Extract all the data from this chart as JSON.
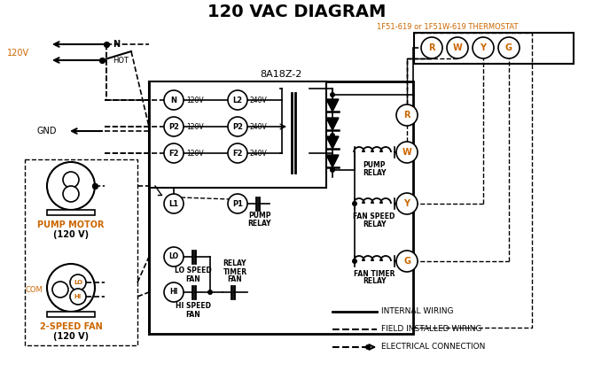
{
  "title": "120 VAC DIAGRAM",
  "bg_color": "#ffffff",
  "line_color": "#000000",
  "orange_color": "#cc6600",
  "thermostat_label": "1F51-619 or 1F51W-619 THERMOSTAT",
  "control_box_label": "8A18Z-2",
  "pump_motor_label": "PUMP MOTOR",
  "pump_motor_v": "(120 V)",
  "fan_label": "2-SPEED FAN",
  "fan_v": "(120 V)",
  "legend": [
    {
      "label": "INTERNAL WIRING",
      "style": "solid"
    },
    {
      "label": "FIELD INSTALLED WIRING",
      "style": "dashed"
    },
    {
      "label": "ELECTRICAL CONNECTION",
      "style": "dot_arrow"
    }
  ]
}
